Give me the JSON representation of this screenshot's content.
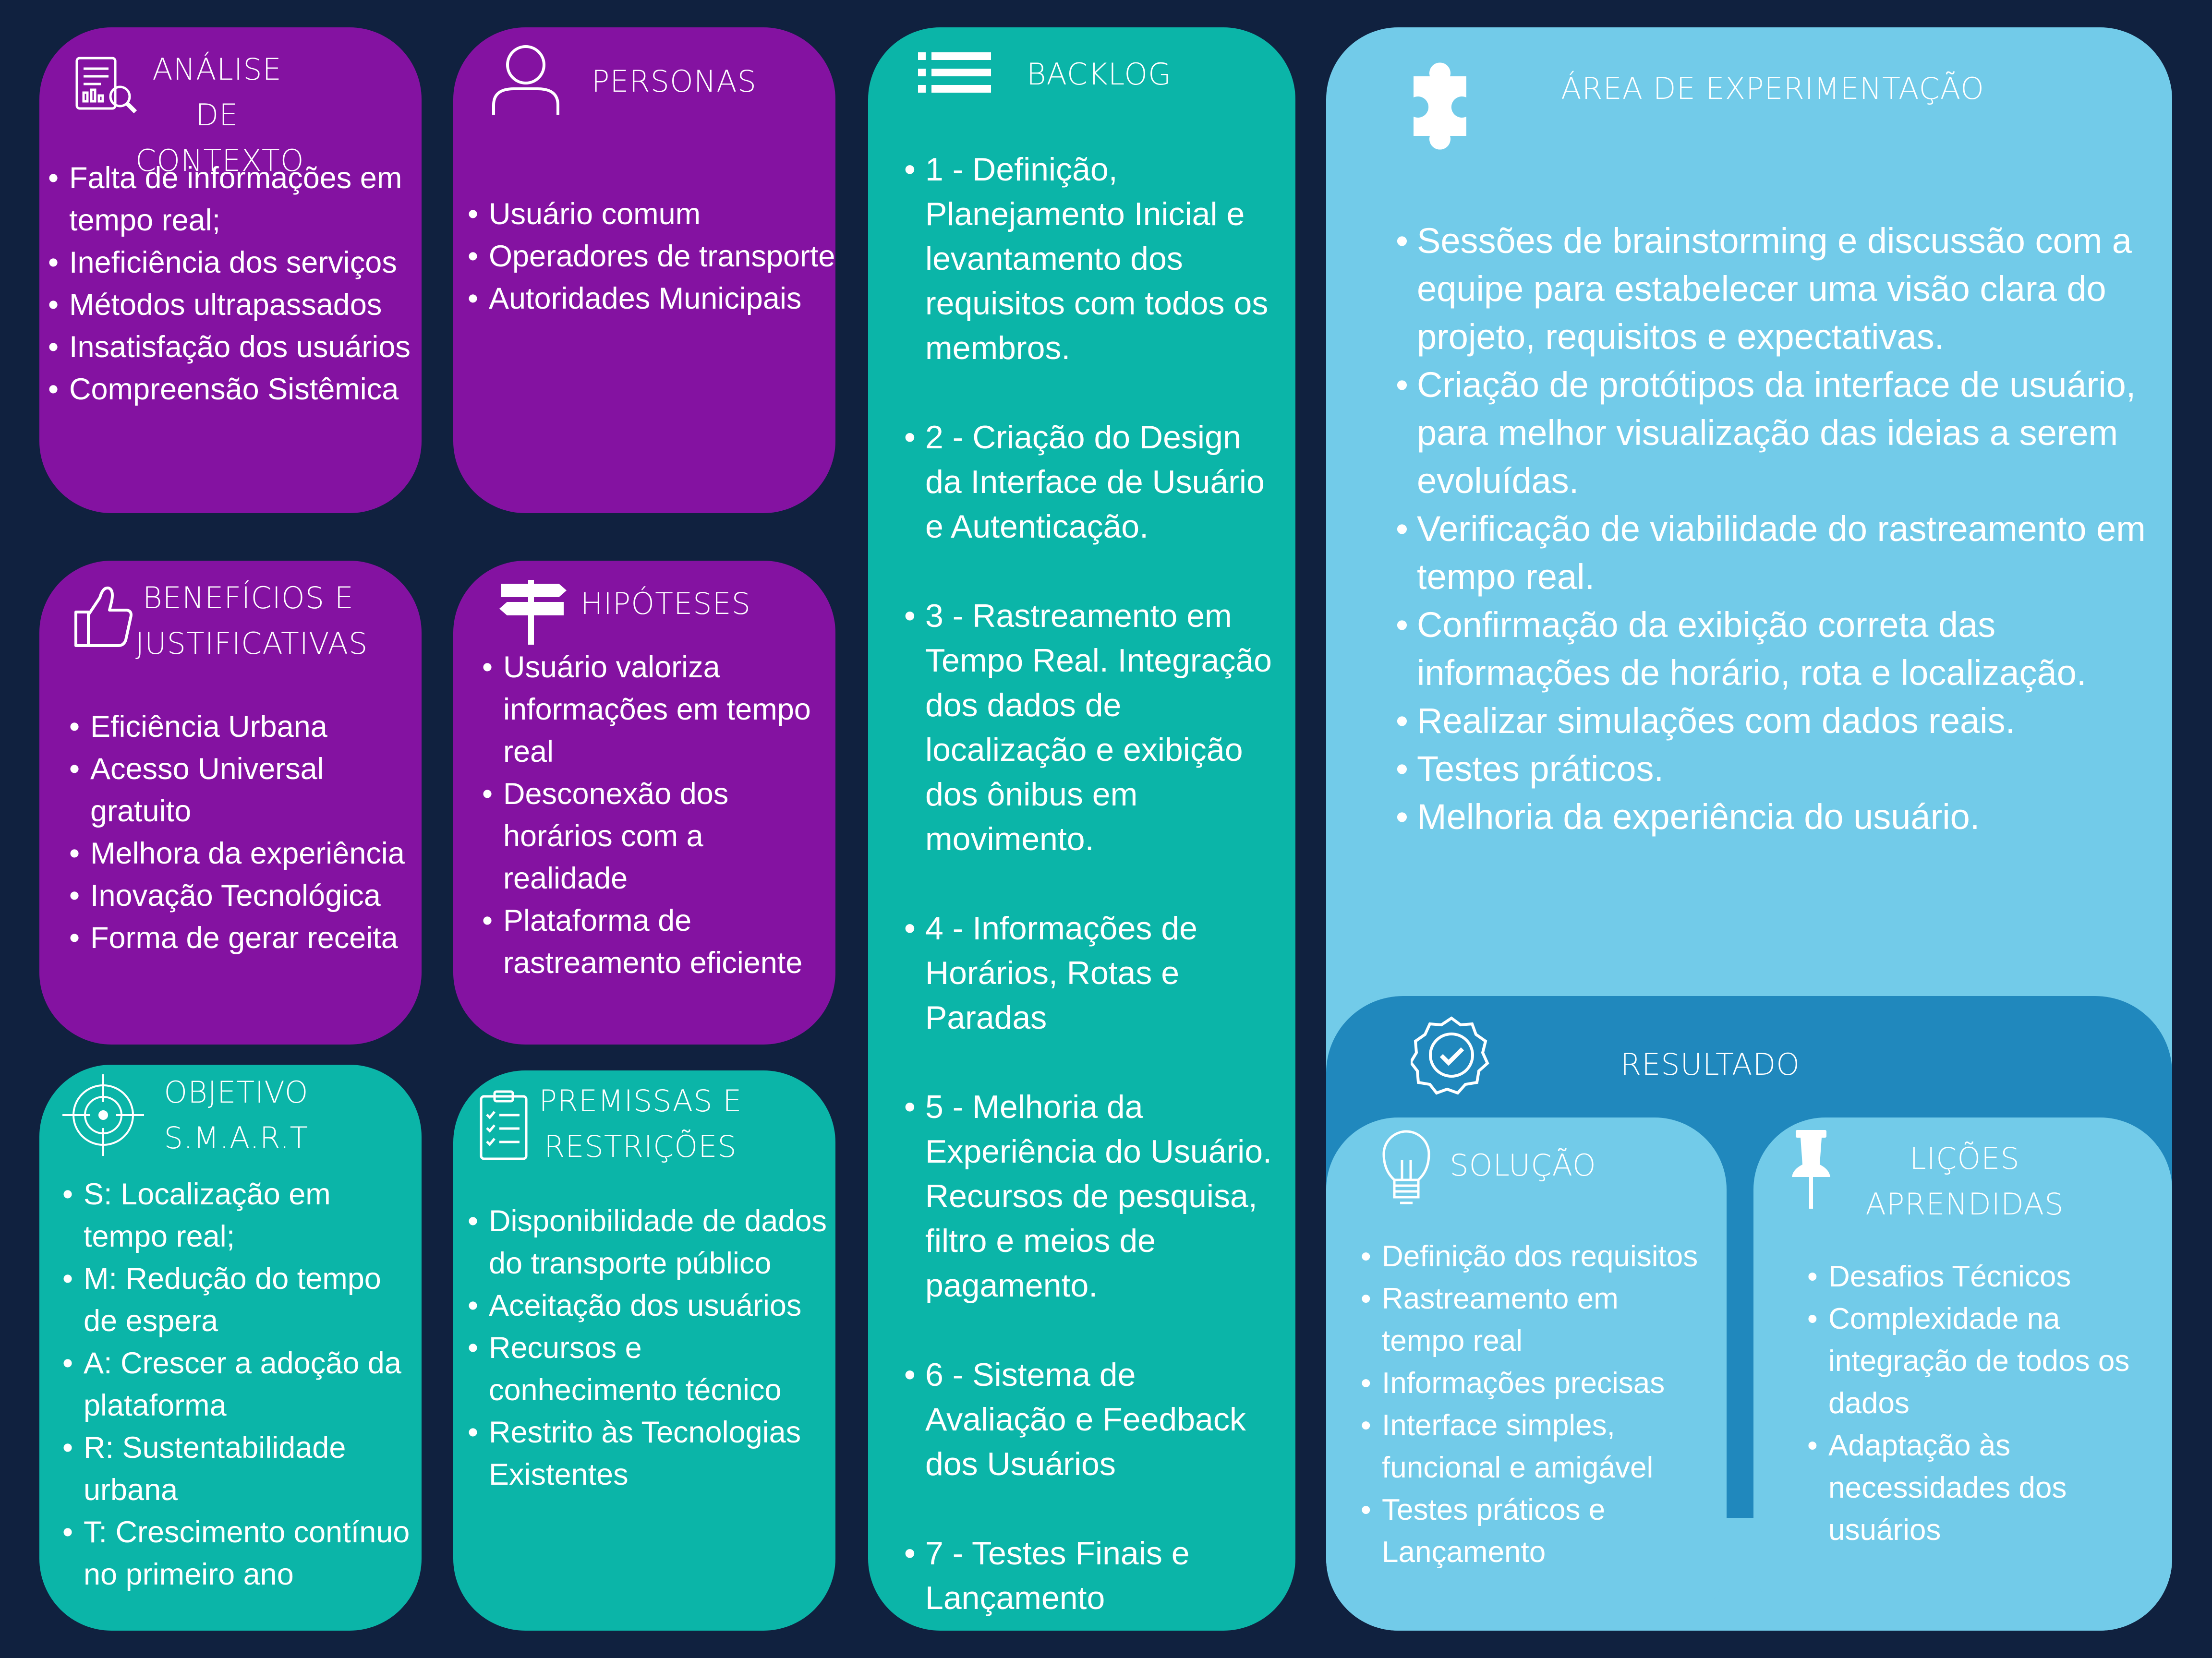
{
  "colors": {
    "background": "#10213f",
    "purple": "#8412a1",
    "teal": "#0bb5a8",
    "sky": "#72cbe9",
    "deep_blue": "#2088bd"
  },
  "analise": {
    "icon": "report-search-icon",
    "title": "ANÁLISE DE CONTEXTO",
    "items": [
      "Falta de informações em tempo real;",
      "Ineficiência dos serviços",
      "Métodos ultrapassados",
      "Insatisfação dos usuários",
      "Compreensão Sistêmica"
    ]
  },
  "personas": {
    "icon": "user-icon",
    "title": "PERSONAS",
    "items": [
      "Usuário comum",
      "Operadores de transporte",
      "Autoridades Municipais"
    ]
  },
  "backlog": {
    "icon": "list-icon",
    "title": "BACKLOG",
    "items": [
      "1 - Definição, Planejamento Inicial e levantamento dos requisitos com todos os membros.",
      "2 - Criação do Design da Interface de Usuário e Autenticação.",
      "3 - Rastreamento em Tempo Real. Integração dos dados  de localização e exibição dos ônibus em movimento.",
      "4 - Informações de Horários, Rotas e Paradas",
      "5 - Melhoria da Experiência do Usuário. Recursos de pesquisa, filtro e meios de pagamento.",
      "6 - Sistema de Avaliação e Feedback dos Usuários",
      "7 - Testes Finais e Lançamento"
    ]
  },
  "experimentacao": {
    "icon": "puzzle-icon",
    "title": "ÁREA DE EXPERIMENTAÇÃO",
    "items": [
      "Sessões de brainstorming e discussão com a equipe para estabelecer uma visão clara do projeto, requisitos e expectativas.",
      "Criação de protótipos da interface de usuário, para melhor visualização das ideias a serem evoluídas.",
      "Verificação de viabilidade do rastreamento em tempo real.",
      "Confirmação da exibição correta das informações de horário, rota e localização.",
      "Realizar simulações com dados reais.",
      "Testes práticos.",
      "Melhoria da experiência do usuário."
    ]
  },
  "beneficios": {
    "icon": "thumbs-up-icon",
    "title": "BENEFÍCIOS E JUSTIFICATIVAS",
    "items": [
      "Eficiência Urbana",
      "Acesso Universal gratuito",
      "Melhora da experiência",
      "Inovação Tecnológica",
      "Forma de gerar receita"
    ]
  },
  "hipoteses": {
    "icon": "signpost-icon",
    "title": "HIPÓTESES",
    "items": [
      "Usuário valoriza informações em tempo real",
      "Desconexão dos horários com a realidade",
      "Plataforma de rastreamento eficiente"
    ]
  },
  "objetivo": {
    "icon": "target-icon",
    "title": "OBJETIVO S.M.A.R.T",
    "items": [
      "S: Localização em tempo real;",
      "M: Redução do tempo de espera",
      "A: Crescer a adoção da plataforma",
      "R: Sustentabilidade urbana",
      "T: Crescimento contínuo no primeiro ano"
    ]
  },
  "premissas": {
    "icon": "clipboard-checklist-icon",
    "title": "PREMISSAS E RESTRIÇÕES",
    "items": [
      "Disponibilidade de dados do transporte público",
      "Aceitação dos usuários",
      "Recursos e conhecimento técnico",
      "Restrito às Tecnologias Existentes"
    ]
  },
  "resultado": {
    "icon": "verified-badge-icon",
    "title": "RESULTADO"
  },
  "solucao": {
    "icon": "lightbulb-icon",
    "title": "SOLUÇÃO",
    "items": [
      "Definição dos requisitos",
      "Rastreamento em tempo real",
      "Informações precisas",
      "Interface simples, funcional e amigável",
      "Testes práticos e Lançamento"
    ]
  },
  "licoes": {
    "icon": "pushpin-icon",
    "title": "LIÇÕES APRENDIDAS",
    "items": [
      "Desafios Técnicos",
      "Complexidade na integração de todos os dados",
      "Adaptação às necessidades dos usuários"
    ]
  }
}
